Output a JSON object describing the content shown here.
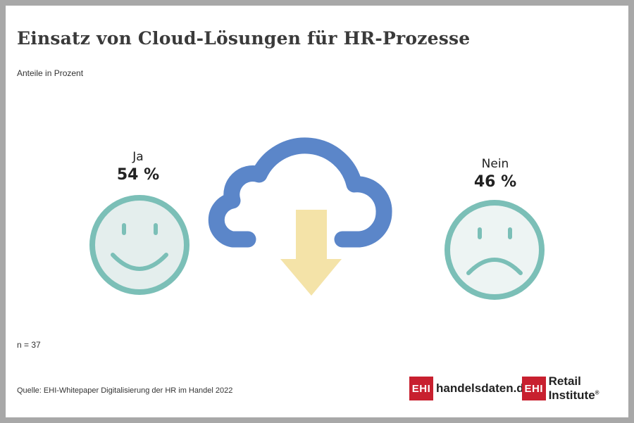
{
  "title": "Einsatz von Cloud-Lösungen für HR-Prozesse",
  "subtitle": "Anteile in Prozent",
  "sample_size": "n = 37",
  "source": "Quelle: EHI-Whitepaper Digitalisierung der HR im Handel 2022",
  "logos": {
    "left_box": "EHI",
    "left_text": "handelsdaten.de",
    "right_box": "EHI",
    "right_text": "Retail Institute",
    "right_reg": "®"
  },
  "icons": {
    "yes": "happy-face-icon",
    "no": "sad-face-icon",
    "center": "cloud-download-icon"
  },
  "colors": {
    "face_stroke": "#7bbfb7",
    "face_fill": "#e9f2f1",
    "cloud": "#5b86c9",
    "arrow": "#f4e3a8",
    "brand_red": "#c8202f"
  },
  "chart_data": {
    "type": "pie",
    "title": "Einsatz von Cloud-Lösungen für HR-Prozesse",
    "subtitle": "Anteile in Prozent",
    "categories": [
      "Ja",
      "Nein"
    ],
    "values": [
      54,
      46
    ],
    "value_labels": [
      "54 %",
      "46 %"
    ],
    "n": 37
  }
}
